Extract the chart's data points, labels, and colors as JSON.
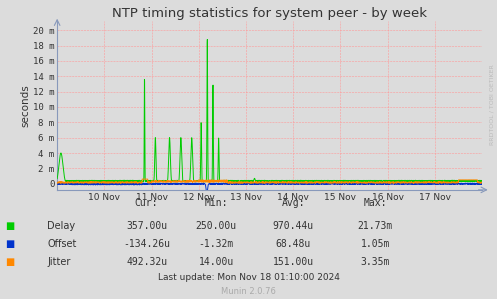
{
  "title": "NTP timing statistics for system peer - by week",
  "ylabel": "seconds",
  "background_color": "#dcdcdc",
  "plot_bg_color": "#dcdcdc",
  "grid_color": "#ff9999",
  "yticks": [
    0,
    0.002,
    0.004,
    0.006,
    0.008,
    0.01,
    0.012,
    0.014,
    0.016,
    0.018,
    0.02
  ],
  "ytick_labels": [
    "0",
    "2 m",
    "4 m",
    "6 m",
    "8 m",
    "10 m",
    "12 m",
    "14 m",
    "16 m",
    "18 m",
    "20 m"
  ],
  "ylim": [
    -0.0008,
    0.0212
  ],
  "xtick_positions": [
    1,
    2,
    3,
    4,
    5,
    6,
    7,
    8
  ],
  "xtick_labels": [
    "10 Nov",
    "11 Nov",
    "12 Nov",
    "13 Nov",
    "14 Nov",
    "15 Nov",
    "16 Nov",
    "17 Nov"
  ],
  "watermark": "RRDTOOL / TOBI OETIKER",
  "munin_text": "Munin 2.0.76",
  "last_update": "Last update: Mon Nov 18 01:10:00 2024",
  "legend_entries": [
    {
      "label": "Delay",
      "color": "#00cc00"
    },
    {
      "label": "Offset",
      "color": "#0033cc"
    },
    {
      "label": "Jitter",
      "color": "#ff8800"
    }
  ],
  "stats_headers": [
    "Cur:",
    "Min:",
    "Avg:",
    "Max:"
  ],
  "stats_rows": [
    [
      "357.00u",
      "250.00u",
      "970.44u",
      "21.73m"
    ],
    [
      "-134.26u",
      "-1.32m",
      "68.48u",
      "1.05m"
    ],
    [
      "492.32u",
      "14.00u",
      "151.00u",
      "3.35m"
    ]
  ]
}
